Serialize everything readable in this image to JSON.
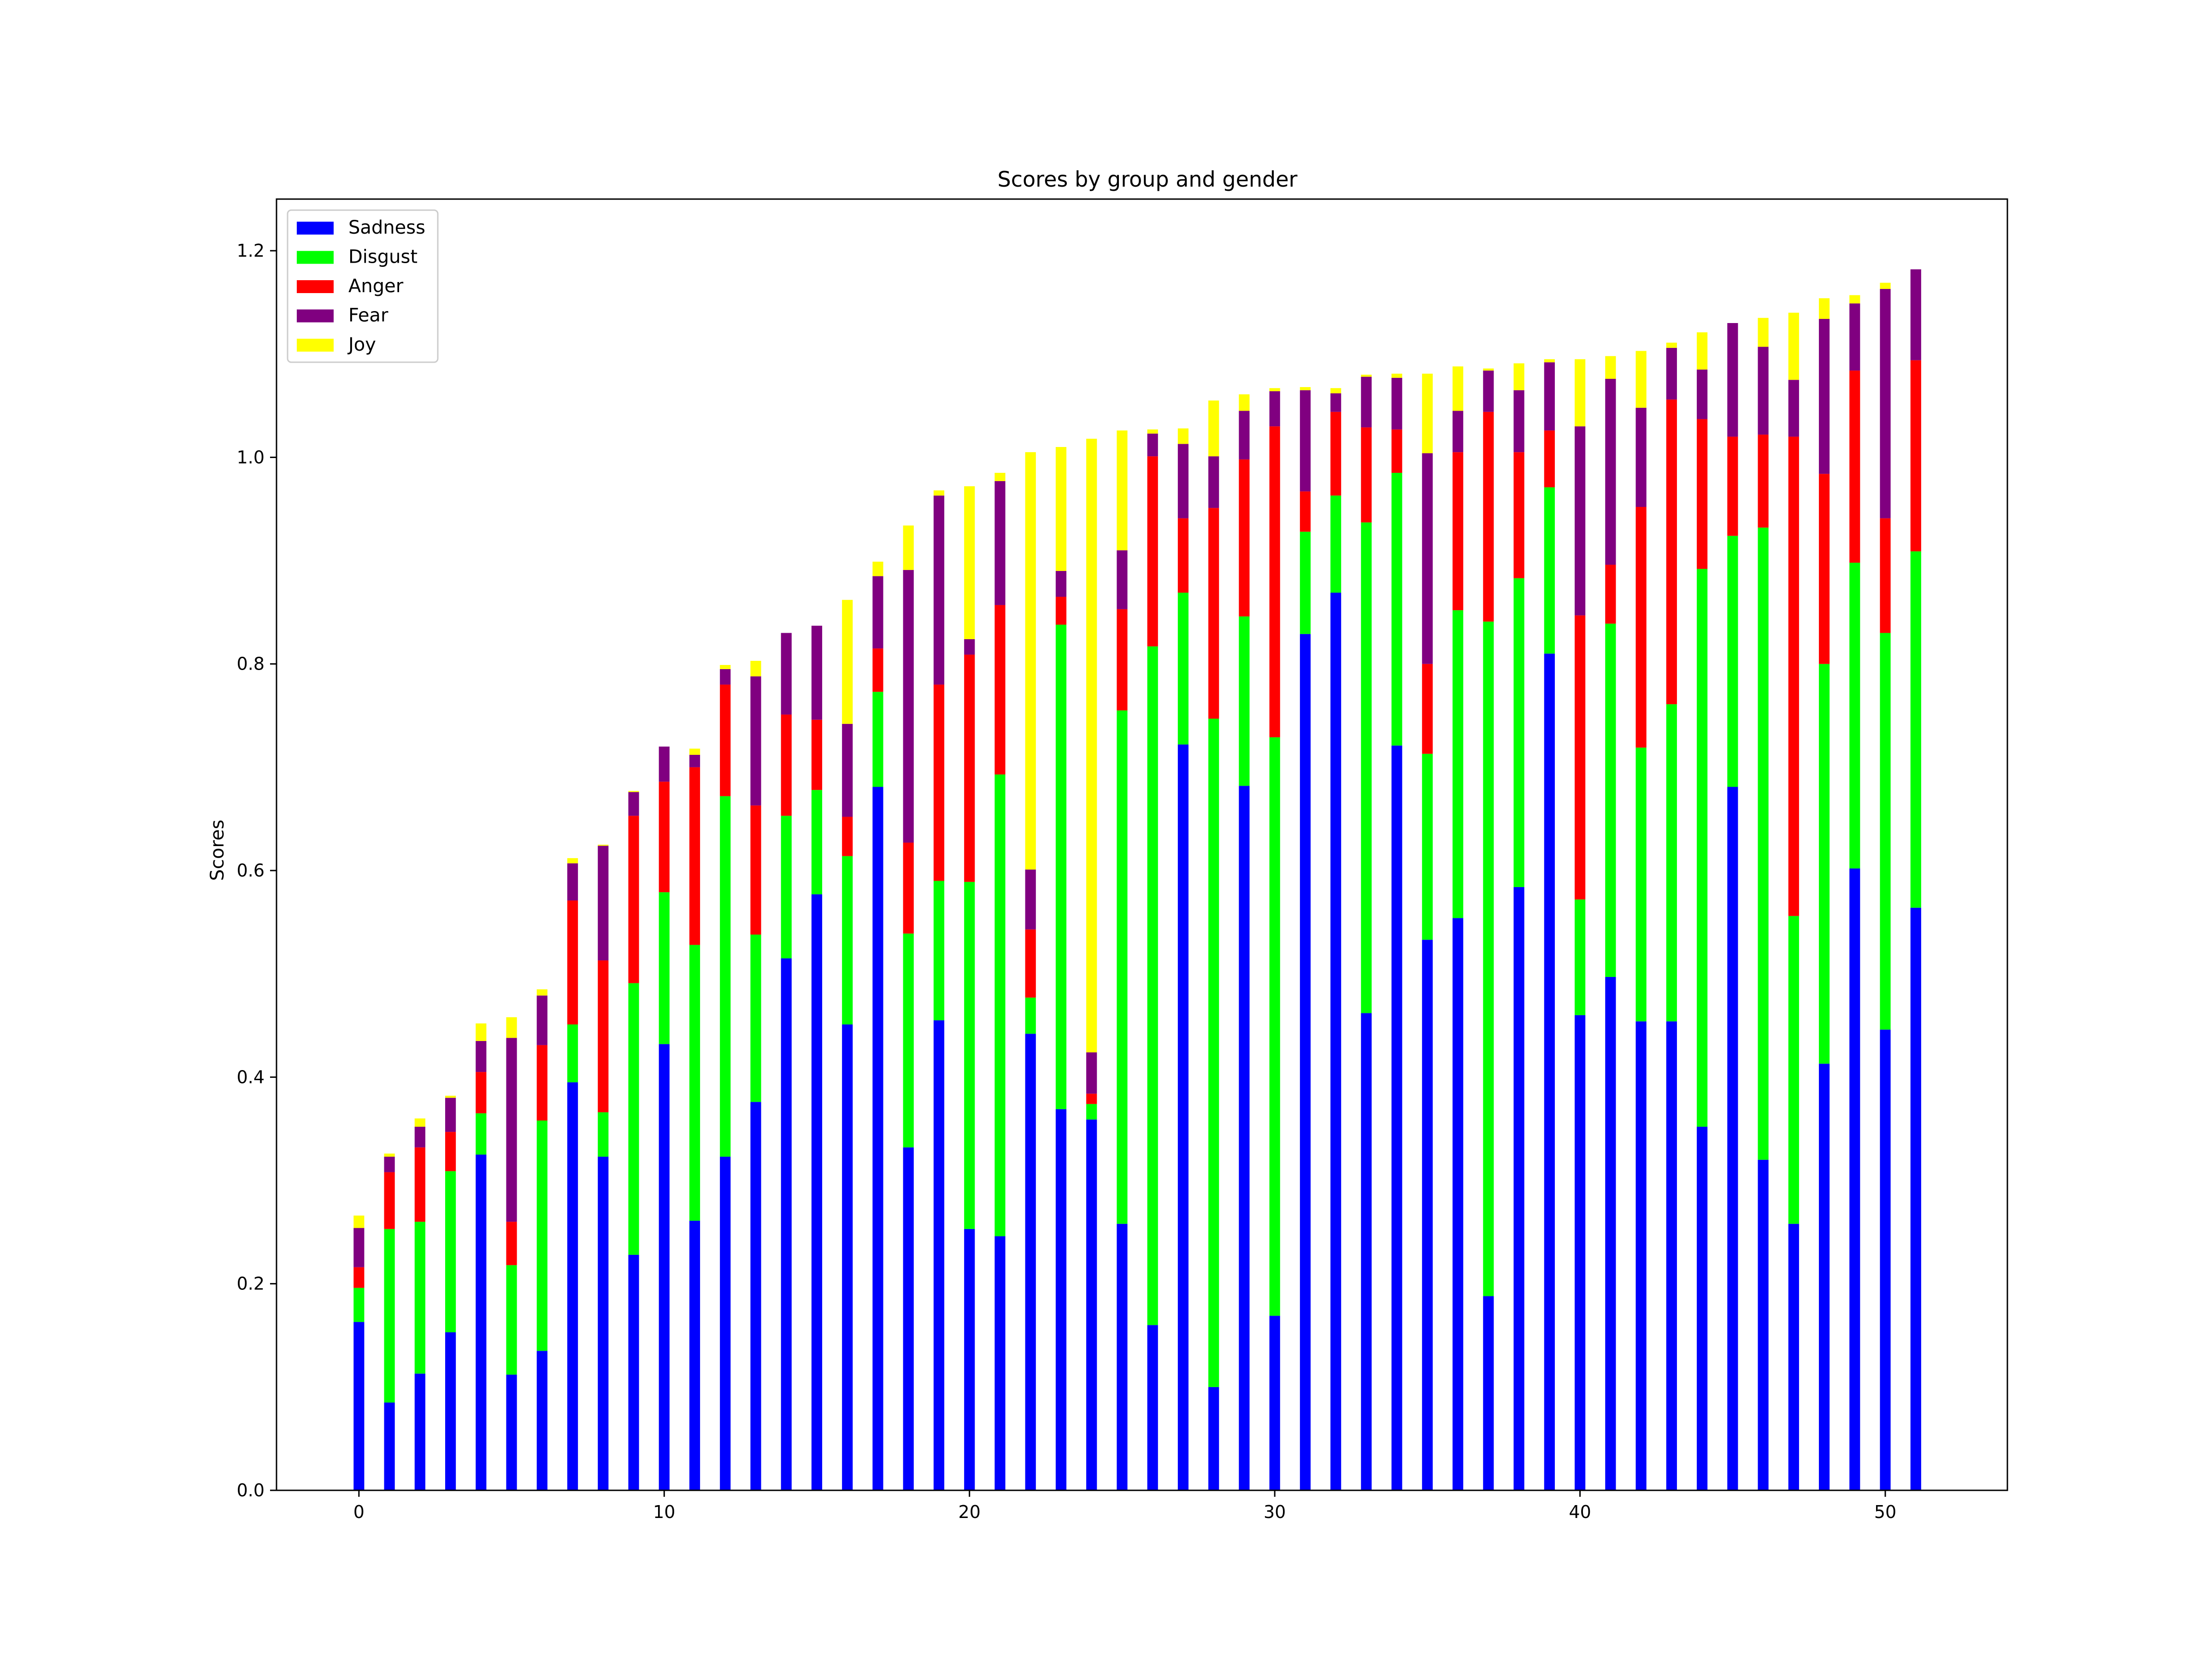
{
  "chart_data": {
    "type": "bar",
    "stacked": true,
    "title": "Scores by group and gender",
    "xlabel": "",
    "ylabel": "Scores",
    "xlim": [
      -2.7,
      54
    ],
    "ylim": [
      0,
      1.25
    ],
    "xticks": [
      0,
      10,
      20,
      30,
      40,
      50
    ],
    "yticks": [
      0.0,
      0.2,
      0.4,
      0.6,
      0.8,
      1.0,
      1.2
    ],
    "ytick_labels": [
      "0.0",
      "0.2",
      "0.4",
      "0.6",
      "0.8",
      "1.0",
      "1.2"
    ],
    "grid": false,
    "legend_position": "top-left",
    "x": [
      0,
      1,
      2,
      3,
      4,
      5,
      6,
      7,
      8,
      9,
      10,
      11,
      12,
      13,
      14,
      15,
      16,
      17,
      18,
      19,
      20,
      21,
      22,
      23,
      24,
      25,
      26,
      27,
      28,
      29,
      30,
      31,
      32,
      33,
      34,
      35,
      36,
      37,
      38,
      39,
      40,
      41,
      42,
      43,
      44,
      45,
      46,
      47,
      48,
      49,
      50,
      51
    ],
    "series": [
      {
        "name": "Sadness",
        "color": "#0000ff",
        "values": [
          0.163,
          0.085,
          0.113,
          0.153,
          0.325,
          0.112,
          0.135,
          0.395,
          0.323,
          0.228,
          0.432,
          0.261,
          0.323,
          0.376,
          0.515,
          0.577,
          0.451,
          0.681,
          0.332,
          0.455,
          0.253,
          0.246,
          0.442,
          0.369,
          0.359,
          0.258,
          0.16,
          0.722,
          0.1,
          0.682,
          0.169,
          0.829,
          0.869,
          0.462,
          0.721,
          0.533,
          0.554,
          0.188,
          0.584,
          0.81,
          0.46,
          0.497,
          0.454,
          0.454,
          0.352,
          0.681,
          0.32,
          0.258,
          0.413,
          0.602,
          0.446,
          0.564
        ]
      },
      {
        "name": "Disgust",
        "color": "#00ff00",
        "values": [
          0.033,
          0.168,
          0.147,
          0.156,
          0.04,
          0.106,
          0.223,
          0.056,
          0.043,
          0.263,
          0.147,
          0.267,
          0.349,
          0.162,
          0.138,
          0.101,
          0.163,
          0.092,
          0.207,
          0.135,
          0.336,
          0.447,
          0.035,
          0.469,
          0.015,
          0.497,
          0.657,
          0.147,
          0.647,
          0.164,
          0.56,
          0.099,
          0.094,
          0.475,
          0.264,
          0.18,
          0.298,
          0.653,
          0.299,
          0.161,
          0.112,
          0.342,
          0.265,
          0.307,
          0.54,
          0.243,
          0.612,
          0.298,
          0.387,
          0.296,
          0.384,
          0.345
        ]
      },
      {
        "name": "Anger",
        "color": "#ff0000",
        "values": [
          0.02,
          0.055,
          0.072,
          0.038,
          0.04,
          0.042,
          0.073,
          0.12,
          0.147,
          0.162,
          0.107,
          0.172,
          0.108,
          0.125,
          0.098,
          0.068,
          0.038,
          0.042,
          0.088,
          0.19,
          0.22,
          0.164,
          0.066,
          0.027,
          0.01,
          0.098,
          0.184,
          0.072,
          0.204,
          0.152,
          0.301,
          0.039,
          0.081,
          0.092,
          0.042,
          0.087,
          0.153,
          0.203,
          0.122,
          0.055,
          0.275,
          0.057,
          0.233,
          0.295,
          0.145,
          0.096,
          0.09,
          0.464,
          0.184,
          0.186,
          0.111,
          0.185
        ]
      },
      {
        "name": "Fear",
        "color": "#800080",
        "values": [
          0.038,
          0.015,
          0.02,
          0.033,
          0.03,
          0.178,
          0.048,
          0.036,
          0.111,
          0.023,
          0.034,
          0.012,
          0.015,
          0.125,
          0.079,
          0.091,
          0.09,
          0.07,
          0.264,
          0.183,
          0.015,
          0.12,
          0.058,
          0.025,
          0.04,
          0.057,
          0.022,
          0.072,
          0.05,
          0.047,
          0.034,
          0.098,
          0.018,
          0.049,
          0.05,
          0.204,
          0.04,
          0.04,
          0.06,
          0.066,
          0.183,
          0.18,
          0.096,
          0.05,
          0.048,
          0.11,
          0.085,
          0.055,
          0.15,
          0.065,
          0.222,
          0.088
        ]
      },
      {
        "name": "Joy",
        "color": "#ffff00",
        "values": [
          0.012,
          0.003,
          0.008,
          0.002,
          0.017,
          0.02,
          0.006,
          0.005,
          0.001,
          0.001,
          0.0,
          0.006,
          0.004,
          0.015,
          0.0,
          0.0,
          0.12,
          0.014,
          0.043,
          0.005,
          0.148,
          0.008,
          0.404,
          0.12,
          0.594,
          0.116,
          0.004,
          0.015,
          0.054,
          0.016,
          0.003,
          0.003,
          0.005,
          0.002,
          0.004,
          0.077,
          0.043,
          0.002,
          0.026,
          0.003,
          0.065,
          0.022,
          0.055,
          0.005,
          0.036,
          0.0,
          0.028,
          0.065,
          0.02,
          0.008,
          0.006,
          0.0
        ]
      }
    ]
  }
}
